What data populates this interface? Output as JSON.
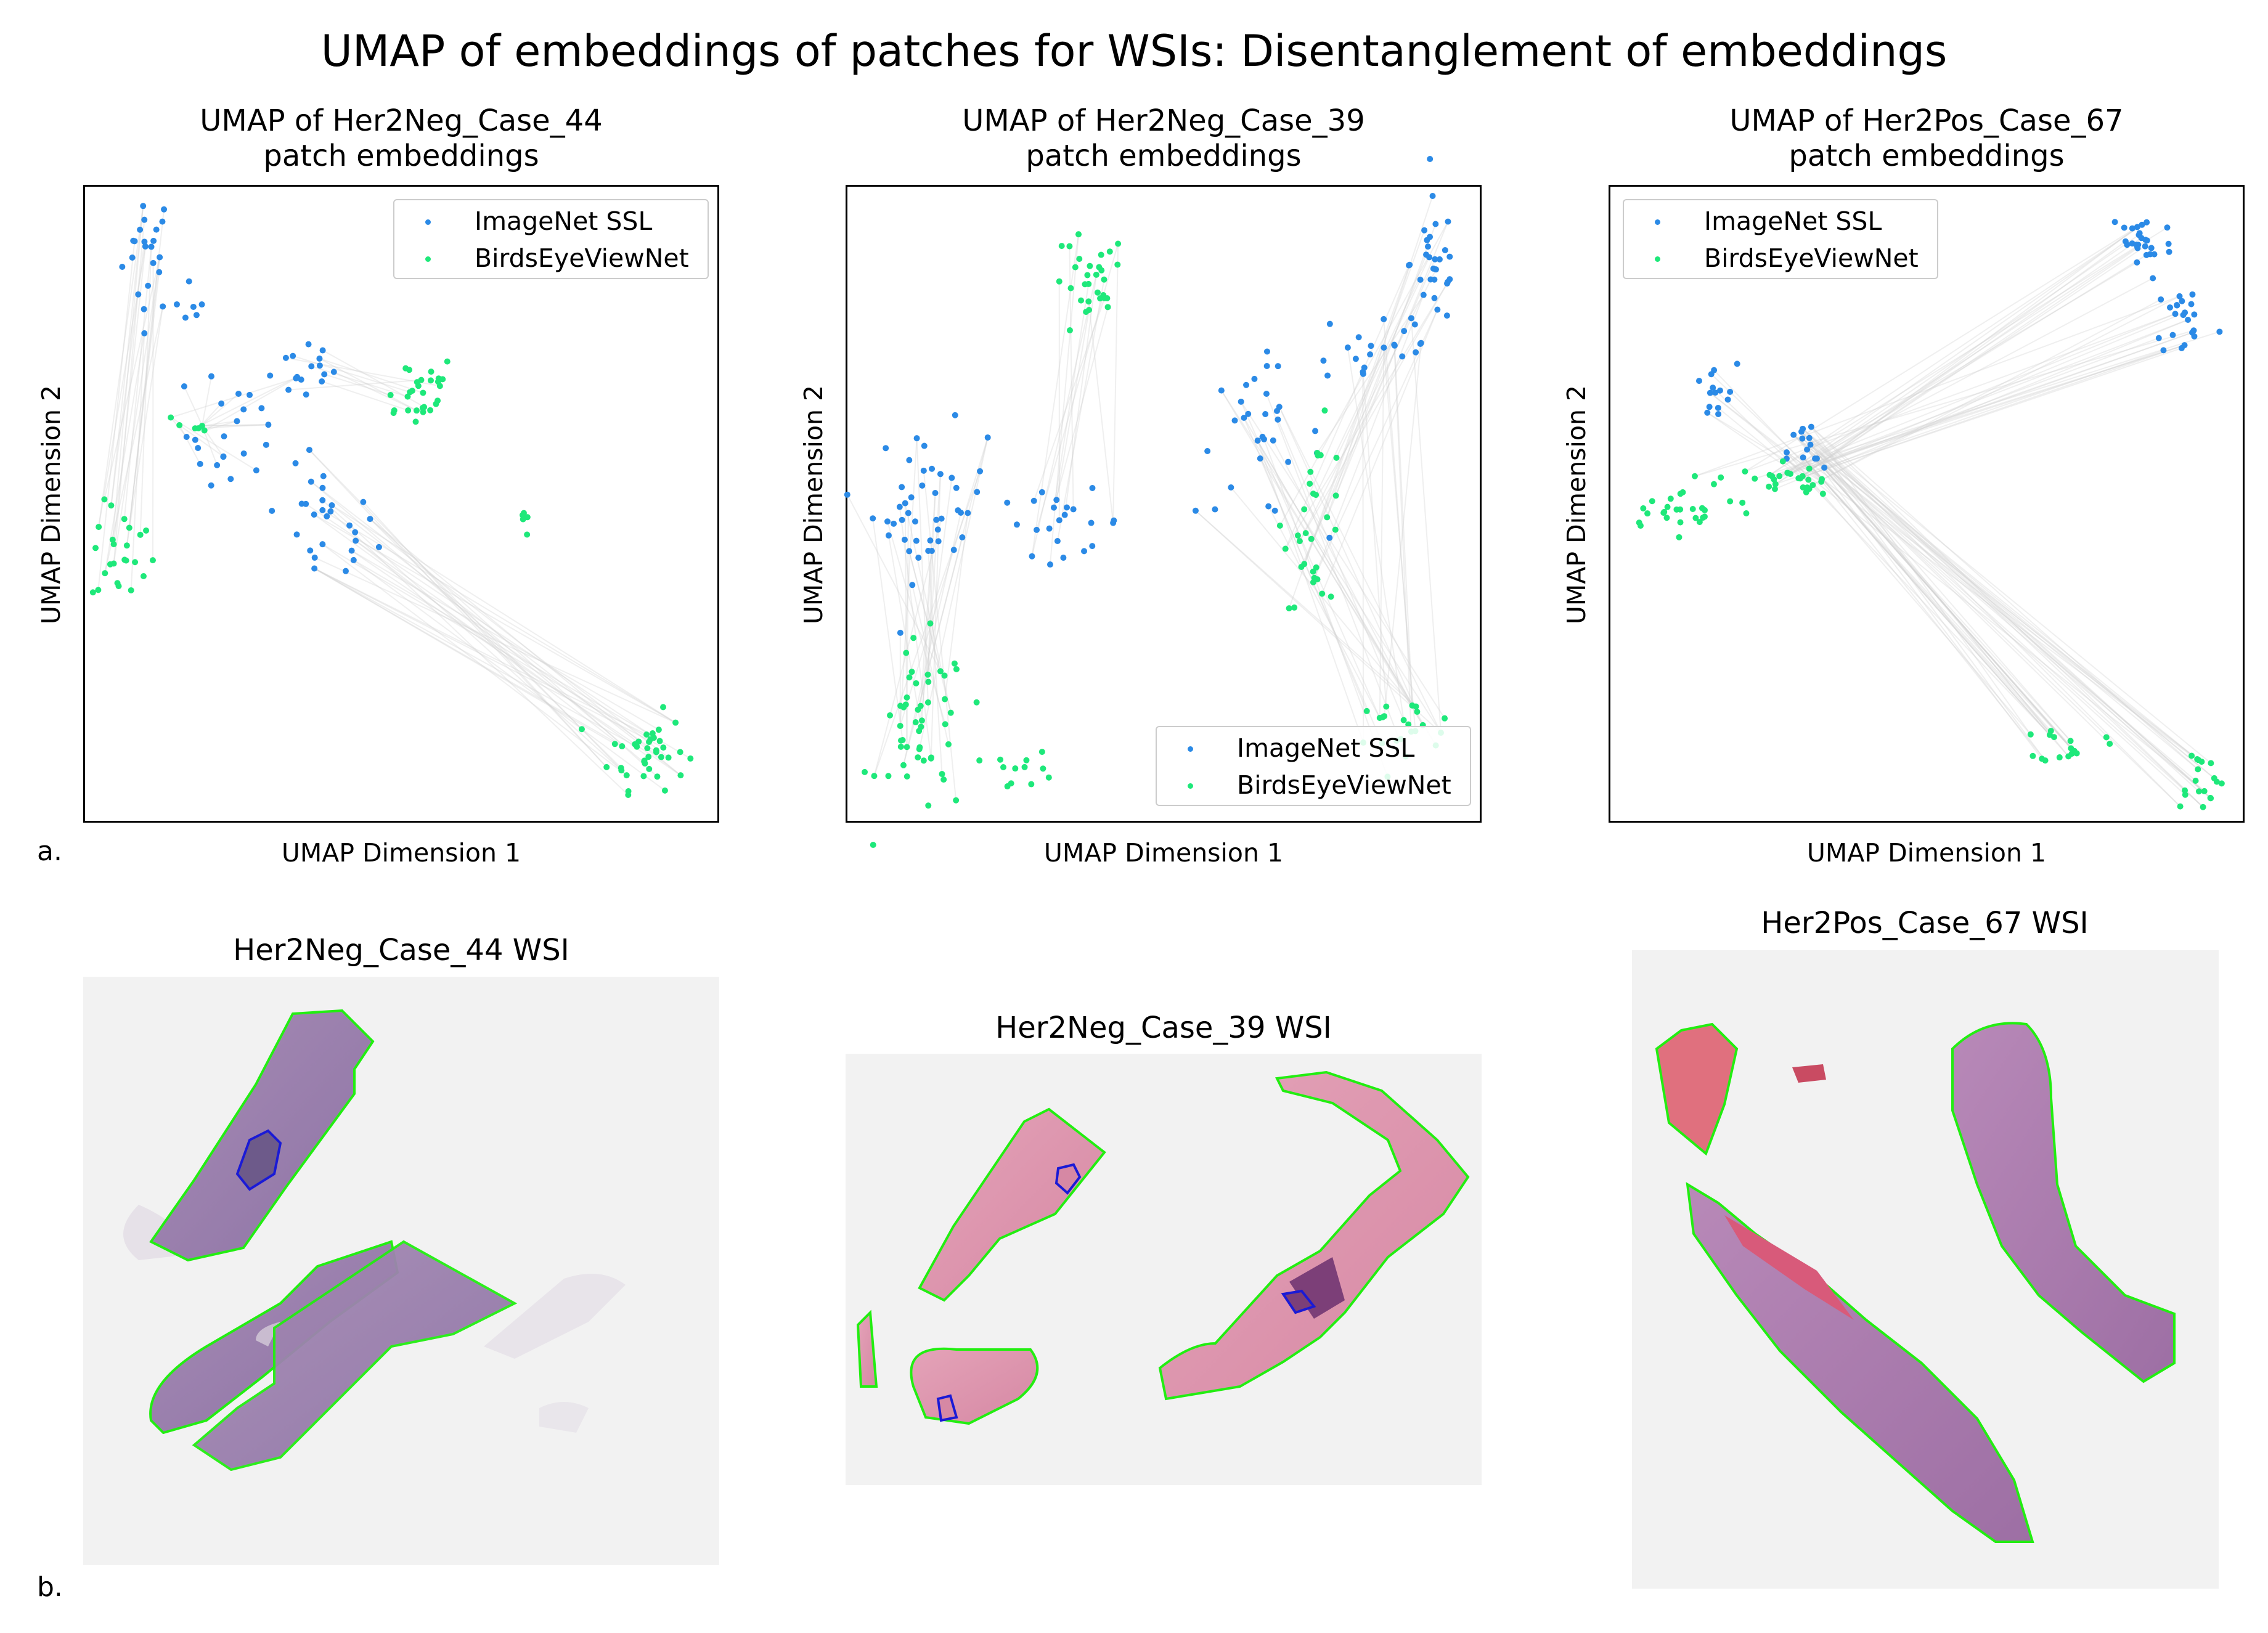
{
  "suptitle": "UMAP of embeddings of patches for WSIs: Disentanglement of embeddings",
  "panel_labels": {
    "a": "a.",
    "b": "b."
  },
  "colors": {
    "imagenet": "#2b8ae6",
    "birds": "#1ee87a",
    "link": "#d0d0d0",
    "tissue_outline": "#22ee11",
    "roi_outline": "#1a1ad6"
  },
  "legend": {
    "series_a": "ImageNet SSL",
    "series_b": "BirdsEyeViewNet"
  },
  "umap_plots": [
    {
      "title_line1": "UMAP of Her2Neg_Case_44",
      "title_line2": "patch embeddings",
      "xlabel": "UMAP Dimension 1",
      "ylabel": "UMAP Dimension 2",
      "legend_position": "top-right"
    },
    {
      "title_line1": "UMAP of Her2Neg_Case_39",
      "title_line2": "patch embeddings",
      "xlabel": "UMAP Dimension 1",
      "ylabel": "UMAP Dimension 2",
      "legend_position": "bottom-right"
    },
    {
      "title_line1": "UMAP of Her2Pos_Case_67",
      "title_line2": "patch embeddings",
      "xlabel": "UMAP Dimension 1",
      "ylabel": "UMAP Dimension 2",
      "legend_position": "top-left"
    }
  ],
  "wsi_images": [
    {
      "title": "Her2Neg_Case_44 WSI"
    },
    {
      "title": "Her2Neg_Case_39 WSI"
    },
    {
      "title": "Her2Pos_Case_67 WSI"
    }
  ],
  "chart_data": [
    {
      "type": "scatter",
      "title": "UMAP of Her2Neg_Case_44 patch embeddings",
      "xlabel": "UMAP Dimension 1",
      "ylabel": "UMAP Dimension 2",
      "ticks_shown": false,
      "xlim": [
        0,
        100
      ],
      "ylim": [
        0,
        100
      ],
      "legend": "top-right",
      "series": [
        {
          "name": "ImageNet SSL",
          "clusters": [
            [
              10,
              90,
              2.0,
              5.0,
              22
            ],
            [
              17,
              80,
              1.5,
              2.5,
              6
            ],
            [
              26,
              61,
              5.0,
              6.0,
              28
            ],
            [
              35,
              71,
              3.0,
              2.5,
              12
            ],
            [
              38,
              46,
              4.0,
              5.0,
              26
            ]
          ]
        },
        {
          "name": "BirdsEyeViewNet",
          "clusters": [
            [
              6,
              42,
              2.5,
              4.0,
              24
            ],
            [
              17,
              62,
              1.5,
              1.5,
              6
            ],
            [
              52,
              68,
              3.5,
              3.0,
              28
            ],
            [
              70,
              47,
              0.8,
              1.5,
              5
            ],
            [
              89,
              11,
              3.0,
              3.0,
              38
            ]
          ]
        }
      ],
      "links": [
        [
          0,
          0,
          20
        ],
        [
          2,
          1,
          18
        ],
        [
          4,
          4,
          30
        ],
        [
          3,
          2,
          10
        ]
      ]
    },
    {
      "type": "scatter",
      "title": "UMAP of Her2Neg_Case_39 patch embeddings",
      "xlabel": "UMAP Dimension 1",
      "ylabel": "UMAP Dimension 2",
      "ticks_shown": false,
      "xlim": [
        0,
        100
      ],
      "ylim": [
        0,
        100
      ],
      "legend": "bottom-right",
      "series": [
        {
          "name": "ImageNet SSL",
          "clusters": [
            [
              13,
              50,
              4.5,
              6.0,
              45
            ],
            [
              34,
              47,
              5.0,
              2.5,
              22
            ],
            [
              65,
              60,
              5.0,
              6.0,
              30
            ],
            [
              84,
              75,
              5.5,
              4.0,
              22
            ],
            [
              93,
              88,
              2.0,
              5.0,
              28
            ]
          ]
        },
        {
          "name": "BirdsEyeViewNet",
          "clusters": [
            [
              38,
              84,
              3.0,
              4.5,
              30
            ],
            [
              12,
              14,
              3.5,
              7.0,
              50
            ],
            [
              28,
              8,
              2.5,
              1.5,
              12
            ],
            [
              74,
              48,
              2.5,
              7.0,
              30
            ],
            [
              88,
              15,
              4.5,
              2.0,
              22
            ]
          ]
        }
      ],
      "links": [
        [
          0,
          1,
          30
        ],
        [
          1,
          0,
          14
        ],
        [
          2,
          4,
          20
        ],
        [
          4,
          3,
          18
        ],
        [
          3,
          4,
          10
        ]
      ]
    },
    {
      "type": "scatter",
      "title": "UMAP of Her2Pos_Case_67 patch embeddings",
      "xlabel": "UMAP Dimension 1",
      "ylabel": "UMAP Dimension 2",
      "ticks_shown": false,
      "xlim": [
        0,
        100
      ],
      "ylim": [
        0,
        100
      ],
      "legend": "top-left",
      "series": [
        {
          "name": "ImageNet SSL",
          "clusters": [
            [
              16,
              67,
              2.0,
              2.5,
              14
            ],
            [
              31,
              58,
              1.5,
              2.5,
              14
            ],
            [
              84,
              91,
              2.5,
              3.0,
              28
            ],
            [
              91,
              79,
              2.5,
              3.0,
              22
            ]
          ]
        },
        {
          "name": "BirdsEyeViewNet",
          "clusters": [
            [
              12,
              49,
              6.0,
              1.5,
              26
            ],
            [
              25,
              54,
              4.0,
              1.5,
              20
            ],
            [
              32,
              53,
              1.5,
              1.0,
              8
            ],
            [
              73,
              12,
              2.5,
              1.5,
              16
            ],
            [
              93,
              7,
              2.0,
              2.5,
              18
            ]
          ]
        }
      ],
      "links": [
        [
          3,
          1,
          18
        ],
        [
          2,
          1,
          14
        ],
        [
          1,
          3,
          22
        ],
        [
          1,
          4,
          22
        ],
        [
          0,
          2,
          8
        ]
      ]
    }
  ]
}
